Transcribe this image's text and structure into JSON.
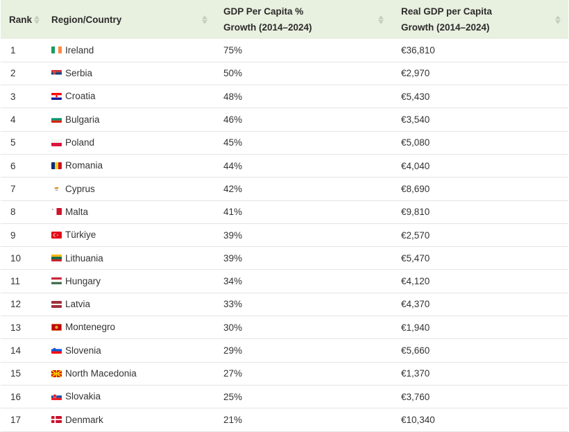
{
  "table": {
    "headers": {
      "rank": "Rank",
      "region": "Region/Country",
      "gdp_line1": "GDP Per Capita %",
      "gdp_line2": "Growth (2014–2024)",
      "real_line1": "Real GDP per Capita",
      "real_line2": "Growth (2014–2024)"
    },
    "rows": [
      {
        "rank": "1",
        "country": "Ireland",
        "flag": "ireland-flag-icon",
        "growth": "75%",
        "real": "€36,810"
      },
      {
        "rank": "2",
        "country": "Serbia",
        "flag": "serbia-flag-icon",
        "growth": "50%",
        "real": "€2,970"
      },
      {
        "rank": "3",
        "country": "Croatia",
        "flag": "croatia-flag-icon",
        "growth": "48%",
        "real": "€5,430"
      },
      {
        "rank": "4",
        "country": "Bulgaria",
        "flag": "bulgaria-flag-icon",
        "growth": "46%",
        "real": "€3,540"
      },
      {
        "rank": "5",
        "country": "Poland",
        "flag": "poland-flag-icon",
        "growth": "45%",
        "real": "€5,080"
      },
      {
        "rank": "6",
        "country": "Romania",
        "flag": "romania-flag-icon",
        "growth": "44%",
        "real": "€4,040"
      },
      {
        "rank": "7",
        "country": "Cyprus",
        "flag": "cyprus-flag-icon",
        "growth": "42%",
        "real": "€8,690"
      },
      {
        "rank": "8",
        "country": "Malta",
        "flag": "malta-flag-icon",
        "growth": "41%",
        "real": "€9,810"
      },
      {
        "rank": "9",
        "country": "Türkiye",
        "flag": "turkiye-flag-icon",
        "growth": "39%",
        "real": "€2,570"
      },
      {
        "rank": "10",
        "country": "Lithuania",
        "flag": "lithuania-flag-icon",
        "growth": "39%",
        "real": "€5,470"
      },
      {
        "rank": "11",
        "country": "Hungary",
        "flag": "hungary-flag-icon",
        "growth": "34%",
        "real": "€4,120"
      },
      {
        "rank": "12",
        "country": "Latvia",
        "flag": "latvia-flag-icon",
        "growth": "33%",
        "real": "€4,370"
      },
      {
        "rank": "13",
        "country": "Montenegro",
        "flag": "montenegro-flag-icon",
        "growth": "30%",
        "real": "€1,940"
      },
      {
        "rank": "14",
        "country": "Slovenia",
        "flag": "slovenia-flag-icon",
        "growth": "29%",
        "real": "€5,660"
      },
      {
        "rank": "15",
        "country": "North Macedonia",
        "flag": "north-macedonia-flag-icon",
        "growth": "27%",
        "real": "€1,370"
      },
      {
        "rank": "16",
        "country": "Slovakia",
        "flag": "slovakia-flag-icon",
        "growth": "25%",
        "real": "€3,760"
      },
      {
        "rank": "17",
        "country": "Denmark",
        "flag": "denmark-flag-icon",
        "growth": "21%",
        "real": "€10,340"
      }
    ]
  },
  "colors": {
    "header_bg": "#e8f0df",
    "row_divider": "#e4e4e4",
    "sort_arrow": "#c7cfc2"
  }
}
